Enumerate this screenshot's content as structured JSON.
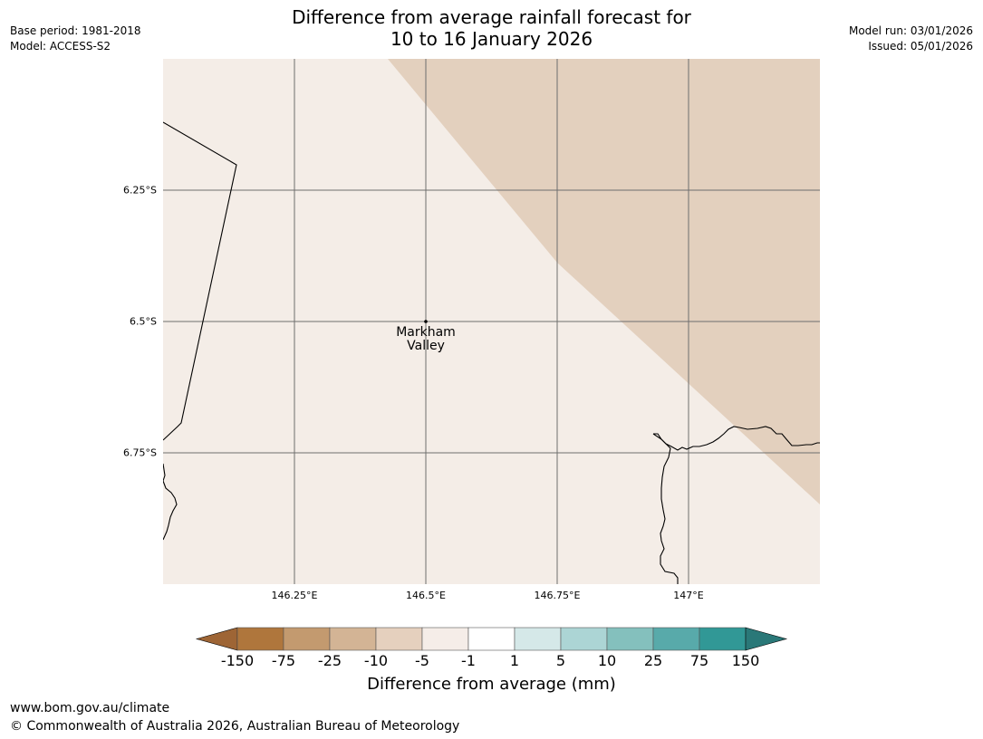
{
  "header": {
    "title_line1": "Difference from average rainfall forecast for",
    "title_line2": "10 to 16 January 2026",
    "base_period": "Base period: 1981-2018",
    "model": "Model: ACCESS-S2",
    "model_run": "Model run: 03/01/2026",
    "issued": "Issued: 05/01/2026"
  },
  "map": {
    "lat_ticks": [
      {
        "value": -6.25,
        "label": "6.25°S"
      },
      {
        "value": -6.5,
        "label": "6.5°S"
      },
      {
        "value": -6.75,
        "label": "6.75°S"
      }
    ],
    "lon_ticks": [
      {
        "value": 146.25,
        "label": "146.25°E"
      },
      {
        "value": 146.5,
        "label": "146.5°E"
      },
      {
        "value": 146.75,
        "label": "146.75°E"
      },
      {
        "value": 147.0,
        "label": "147°E"
      }
    ],
    "place": {
      "name_line1": "Markham",
      "name_line2": "Valley",
      "lat": -6.5,
      "lon": 146.5
    },
    "colors": {
      "category_-5_to_-1": "#f4ede7",
      "category_-10_to_-5": "#e3d0be"
    }
  },
  "colorbar": {
    "label": "Difference from average (mm)",
    "ticks": [
      "-150",
      "-75",
      "-25",
      "-10",
      "-5",
      "-1",
      "1",
      "5",
      "10",
      "25",
      "75",
      "150"
    ],
    "colors": [
      "#9e6535",
      "#af763c",
      "#c39a6f",
      "#d3b495",
      "#e5d0be",
      "#f5ede8",
      "#ffffff",
      "#d5e8e8",
      "#acd5d5",
      "#84c0bd",
      "#58aaaa",
      "#319896",
      "#2a7878"
    ]
  },
  "footer": {
    "url": "www.bom.gov.au/climate",
    "copyright": "© Commonwealth of Australia 2026, Australian Bureau of Meteorology"
  }
}
